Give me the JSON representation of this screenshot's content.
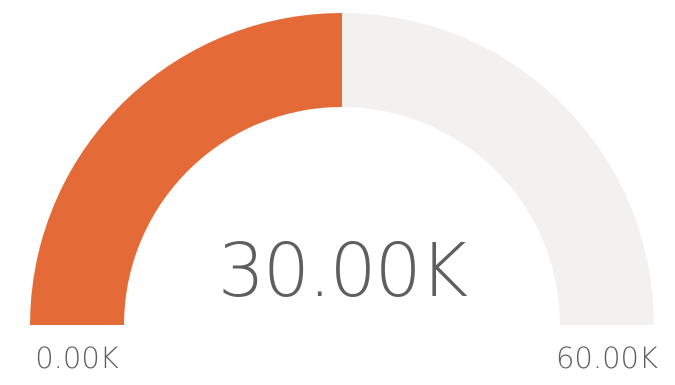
{
  "chart_data": {
    "type": "gauge",
    "value": 30000,
    "min": 0,
    "max": 60000,
    "value_label": "30.00K",
    "min_label": "0.00K",
    "max_label": "60.00K",
    "colors": {
      "fill": "#e46b37",
      "track": "#f2f1f0",
      "text": "#5f5f5f"
    }
  }
}
